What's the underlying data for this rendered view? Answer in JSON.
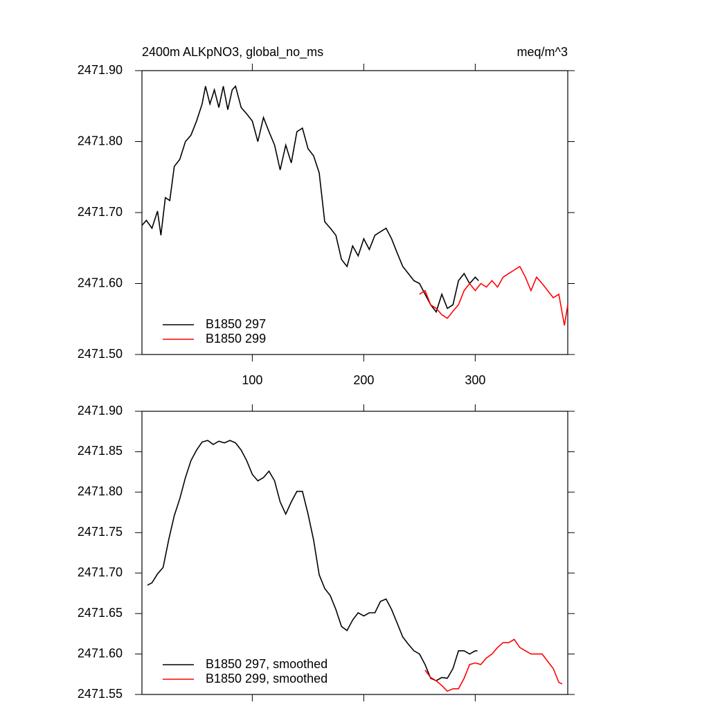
{
  "chart_data": [
    {
      "type": "line",
      "title": "2400m ALKpNO3, global_no_ms",
      "units": "meq/m^3",
      "xlim": [
        1,
        383
      ],
      "xticks": [
        100,
        200,
        300
      ],
      "show_xtick_labels": true,
      "ylim": [
        2471.5,
        2471.9
      ],
      "yticks": [
        {
          "value": 2471.5,
          "label": "2471.50"
        },
        {
          "value": 2471.6,
          "label": "2471.60"
        },
        {
          "value": 2471.7,
          "label": "2471.70"
        },
        {
          "value": 2471.8,
          "label": "2471.80"
        },
        {
          "value": 2471.9,
          "label": "2471.90"
        }
      ],
      "series": [
        {
          "name": "B1850 297",
          "color": "#000000",
          "x": [
            1,
            5,
            10,
            15,
            18,
            22,
            26,
            30,
            35,
            40,
            45,
            50,
            55,
            58,
            62,
            66,
            70,
            74,
            78,
            82,
            85,
            90,
            95,
            100,
            105,
            110,
            115,
            120,
            125,
            130,
            135,
            140,
            145,
            150,
            155,
            160,
            165,
            170,
            175,
            180,
            185,
            190,
            195,
            200,
            205,
            210,
            215,
            220,
            225,
            230,
            235,
            240,
            245,
            250,
            255,
            260,
            265,
            270,
            275,
            280,
            285,
            290,
            295,
            300,
            303
          ],
          "values": [
            2471.682,
            2471.689,
            2471.678,
            2471.702,
            2471.668,
            2471.721,
            2471.717,
            2471.765,
            2471.775,
            2471.8,
            2471.809,
            2471.829,
            2471.853,
            2471.878,
            2471.853,
            2471.873,
            2471.848,
            2471.878,
            2471.845,
            2471.873,
            2471.878,
            2471.848,
            2471.839,
            2471.829,
            2471.8,
            2471.834,
            2471.814,
            2471.795,
            2471.76,
            2471.795,
            2471.77,
            2471.814,
            2471.819,
            2471.79,
            2471.78,
            2471.756,
            2471.687,
            2471.678,
            2471.668,
            2471.634,
            2471.624,
            2471.653,
            2471.639,
            2471.663,
            2471.648,
            2471.668,
            2471.673,
            2471.678,
            2471.663,
            2471.643,
            2471.624,
            2471.614,
            2471.604,
            2471.6,
            2471.585,
            2471.57,
            2471.56,
            2471.585,
            2471.565,
            2471.57,
            2471.604,
            2471.614,
            2471.6,
            2471.609,
            2471.604
          ]
        },
        {
          "name": "B1850 299",
          "color": "#ff0000",
          "x": [
            250,
            255,
            260,
            265,
            270,
            275,
            280,
            285,
            290,
            295,
            300,
            305,
            310,
            315,
            320,
            325,
            330,
            335,
            340,
            345,
            350,
            355,
            360,
            365,
            370,
            375,
            380,
            383
          ],
          "values": [
            2471.585,
            2471.59,
            2471.57,
            2471.565,
            2471.556,
            2471.551,
            2471.561,
            2471.57,
            2471.59,
            2471.6,
            2471.59,
            2471.6,
            2471.595,
            2471.604,
            2471.595,
            2471.609,
            2471.614,
            2471.619,
            2471.624,
            2471.609,
            2471.59,
            2471.609,
            2471.6,
            2471.59,
            2471.58,
            2471.585,
            2471.541,
            2471.57
          ]
        }
      ]
    },
    {
      "type": "line",
      "xlim": [
        1,
        383
      ],
      "xticks": [
        100,
        200,
        300
      ],
      "show_xtick_labels": false,
      "ylim": [
        2471.55,
        2471.9
      ],
      "yticks": [
        {
          "value": 2471.55,
          "label": "2471.55"
        },
        {
          "value": 2471.6,
          "label": "2471.60"
        },
        {
          "value": 2471.65,
          "label": "2471.65"
        },
        {
          "value": 2471.7,
          "label": "2471.70"
        },
        {
          "value": 2471.75,
          "label": "2471.75"
        },
        {
          "value": 2471.8,
          "label": "2471.80"
        },
        {
          "value": 2471.85,
          "label": "2471.85"
        },
        {
          "value": 2471.9,
          "label": "2471.90"
        }
      ],
      "series": [
        {
          "name": "B1850 297, smoothed",
          "color": "#000000",
          "x": [
            6,
            10,
            15,
            20,
            25,
            30,
            35,
            40,
            45,
            50,
            55,
            60,
            65,
            70,
            75,
            80,
            85,
            90,
            95,
            100,
            105,
            110,
            115,
            120,
            125,
            130,
            135,
            140,
            145,
            150,
            155,
            160,
            165,
            170,
            175,
            180,
            185,
            190,
            195,
            200,
            205,
            210,
            215,
            220,
            225,
            230,
            235,
            240,
            245,
            250,
            255,
            260,
            265,
            270,
            275,
            280,
            285,
            290,
            295,
            300,
            302
          ],
          "values": [
            2471.685,
            2471.688,
            2471.699,
            2471.707,
            2471.741,
            2471.771,
            2471.792,
            2471.818,
            2471.839,
            2471.852,
            2471.862,
            2471.864,
            2471.859,
            2471.863,
            2471.861,
            2471.864,
            2471.861,
            2471.852,
            2471.839,
            2471.822,
            2471.814,
            2471.818,
            2471.826,
            2471.814,
            2471.788,
            2471.773,
            2471.788,
            2471.801,
            2471.801,
            2471.773,
            2471.741,
            2471.698,
            2471.681,
            2471.672,
            2471.655,
            2471.634,
            2471.629,
            2471.642,
            2471.651,
            2471.647,
            2471.651,
            2471.651,
            2471.665,
            2471.668,
            2471.655,
            2471.638,
            2471.621,
            2471.612,
            2471.604,
            2471.6,
            2471.587,
            2471.57,
            2471.567,
            2471.571,
            2471.57,
            2471.582,
            2471.604,
            2471.604,
            2471.6,
            2471.604,
            2471.604
          ]
        },
        {
          "name": "B1850 299, smoothed",
          "color": "#ff0000",
          "x": [
            255,
            260,
            265,
            270,
            275,
            280,
            285,
            290,
            295,
            300,
            305,
            310,
            315,
            320,
            325,
            330,
            335,
            340,
            345,
            350,
            355,
            360,
            365,
            370,
            375,
            378
          ],
          "values": [
            2471.58,
            2471.571,
            2471.567,
            2471.561,
            2471.554,
            2471.557,
            2471.557,
            2471.57,
            2471.587,
            2471.589,
            2471.587,
            2471.595,
            2471.6,
            2471.608,
            2471.614,
            2471.614,
            2471.618,
            2471.608,
            2471.604,
            2471.6,
            2471.6,
            2471.6,
            2471.591,
            2471.582,
            2471.565,
            2471.563
          ]
        }
      ]
    }
  ]
}
